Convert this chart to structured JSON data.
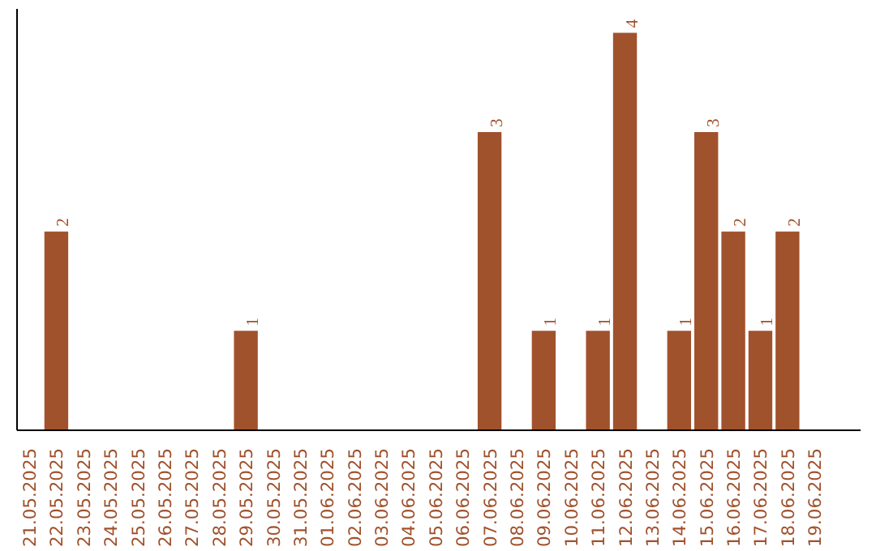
{
  "chart_data": {
    "type": "bar",
    "categories": [
      "21.05.2025",
      "22.05.2025",
      "23.05.2025",
      "24.05.2025",
      "25.05.2025",
      "26.05.2025",
      "27.05.2025",
      "28.05.2025",
      "29.05.2025",
      "30.05.2025",
      "31.05.2025",
      "01.06.2025",
      "02.06.2025",
      "03.06.2025",
      "04.06.2025",
      "05.06.2025",
      "06.06.2025",
      "07.06.2025",
      "08.06.2025",
      "09.06.2025",
      "10.06.2025",
      "11.06.2025",
      "12.06.2025",
      "13.06.2025",
      "14.06.2025",
      "15.06.2025",
      "16.06.2025",
      "17.06.2025",
      "18.06.2025",
      "19.06.2025"
    ],
    "values": [
      0,
      2,
      0,
      0,
      0,
      0,
      0,
      0,
      1,
      0,
      0,
      0,
      0,
      0,
      0,
      0,
      0,
      3,
      0,
      1,
      0,
      1,
      4,
      0,
      1,
      3,
      2,
      1,
      2,
      0
    ],
    "value_labels": [
      null,
      "2",
      null,
      null,
      null,
      null,
      null,
      null,
      "1",
      null,
      null,
      null,
      null,
      null,
      null,
      null,
      null,
      "3",
      null,
      "1",
      null,
      "1",
      "4",
      null,
      "1",
      "3",
      "2",
      "1",
      "2",
      null
    ],
    "color": "#a0522d",
    "tick_labels": "x"
  }
}
